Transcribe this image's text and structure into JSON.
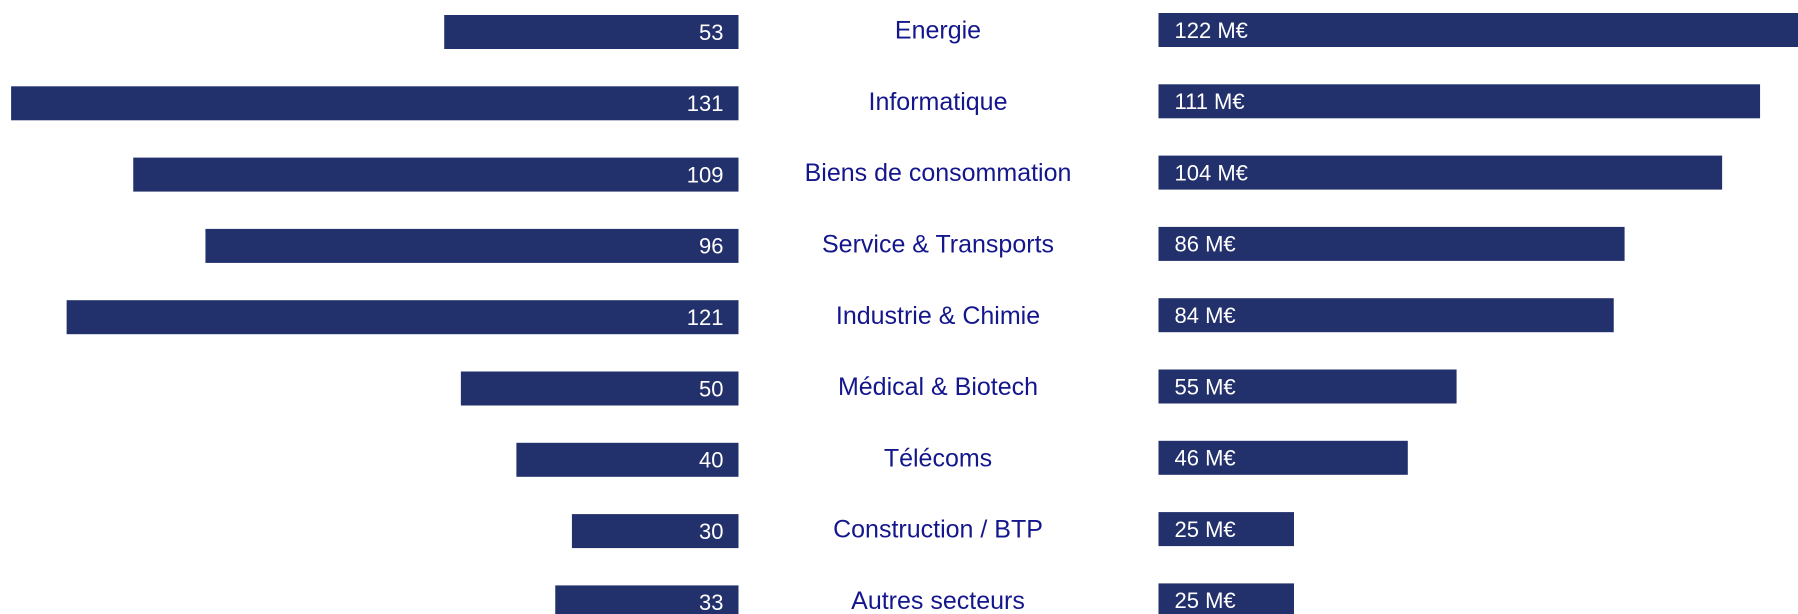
{
  "chart_data": {
    "type": "butterfly-bar",
    "categories": [
      "Energie",
      "Informatique",
      "Biens de consommation",
      "Service & Transports",
      "Industrie & Chimie",
      "Médical & Biotech",
      "Télécoms",
      "Construction  / BTP",
      "Autres secteurs"
    ],
    "series": [
      {
        "color": "#22306b",
        "values": [
          53,
          131,
          109,
          96,
          121,
          50,
          40,
          30,
          33
        ],
        "xlim": [
          0,
          133
        ]
      },
      {
        "color": "#22306b",
        "values": [
          122,
          111,
          104,
          86,
          84,
          55,
          46,
          25,
          25
        ],
        "value_labels": [
          "122 M€",
          "111 M€",
          "104 M€",
          "86 M€",
          "84 M€",
          "55 M€",
          "46 M€",
          "25 M€",
          "25 M€"
        ],
        "xlim": [
          0,
          118
        ]
      }
    ]
  }
}
